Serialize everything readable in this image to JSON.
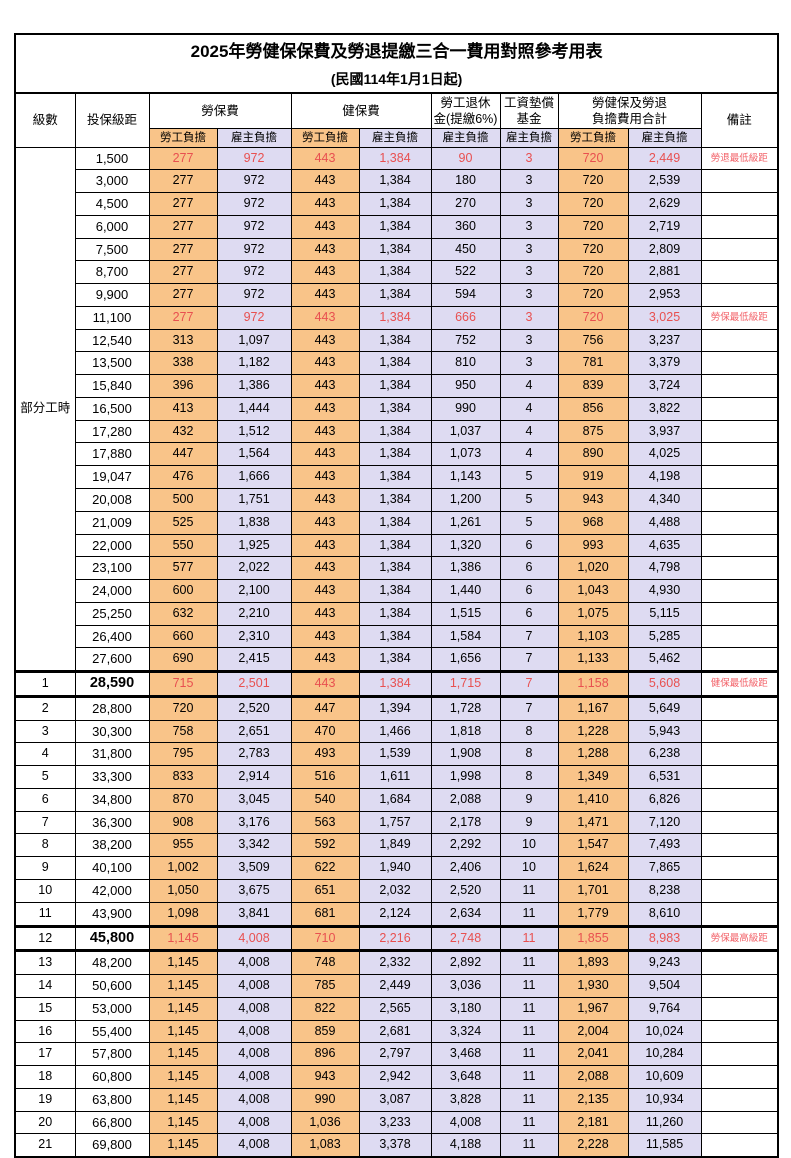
{
  "title": "2025年勞健保保費及勞退提繳三合一費用對照參考用表",
  "subtitle": "(民國114年1月1日起)",
  "columns": {
    "level": "級數",
    "bracket": "投保級距",
    "labor": "勞保費",
    "health": "健保費",
    "pension_l1": "勞工退休",
    "pension_l2": "金(提繳6%)",
    "fund_l1": "工資墊償",
    "fund_l2": "基金",
    "total_l1": "勞健保及勞退",
    "total_l2": "負擔費用合計",
    "remark": "備註",
    "employee_share": "勞工負擔",
    "employer_share": "雇主負擔"
  },
  "part_time_label": "部分工時",
  "colors": {
    "employee_bg": "#F9C489",
    "employer_bg": "#DEDBF2",
    "highlight_text": "#E85050",
    "note_text": "#F25F66",
    "border": "#000000"
  },
  "rows": [
    {
      "level": "部分工時",
      "level_span": 23,
      "bracket": "1,500",
      "values": [
        "277",
        "972",
        "443",
        "1,384",
        "90",
        "3",
        "720",
        "2,449"
      ],
      "note": "勞退最低級距",
      "red": true
    },
    {
      "bracket": "3,000",
      "values": [
        "277",
        "972",
        "443",
        "1,384",
        "180",
        "3",
        "720",
        "2,539"
      ]
    },
    {
      "bracket": "4,500",
      "values": [
        "277",
        "972",
        "443",
        "1,384",
        "270",
        "3",
        "720",
        "2,629"
      ]
    },
    {
      "bracket": "6,000",
      "values": [
        "277",
        "972",
        "443",
        "1,384",
        "360",
        "3",
        "720",
        "2,719"
      ]
    },
    {
      "bracket": "7,500",
      "values": [
        "277",
        "972",
        "443",
        "1,384",
        "450",
        "3",
        "720",
        "2,809"
      ]
    },
    {
      "bracket": "8,700",
      "values": [
        "277",
        "972",
        "443",
        "1,384",
        "522",
        "3",
        "720",
        "2,881"
      ]
    },
    {
      "bracket": "9,900",
      "values": [
        "277",
        "972",
        "443",
        "1,384",
        "594",
        "3",
        "720",
        "2,953"
      ]
    },
    {
      "bracket": "11,100",
      "values": [
        "277",
        "972",
        "443",
        "1,384",
        "666",
        "3",
        "720",
        "3,025"
      ],
      "note": "勞保最低級距",
      "red": true
    },
    {
      "bracket": "12,540",
      "values": [
        "313",
        "1,097",
        "443",
        "1,384",
        "752",
        "3",
        "756",
        "3,237"
      ]
    },
    {
      "bracket": "13,500",
      "values": [
        "338",
        "1,182",
        "443",
        "1,384",
        "810",
        "3",
        "781",
        "3,379"
      ]
    },
    {
      "bracket": "15,840",
      "values": [
        "396",
        "1,386",
        "443",
        "1,384",
        "950",
        "4",
        "839",
        "3,724"
      ]
    },
    {
      "bracket": "16,500",
      "values": [
        "413",
        "1,444",
        "443",
        "1,384",
        "990",
        "4",
        "856",
        "3,822"
      ]
    },
    {
      "bracket": "17,280",
      "values": [
        "432",
        "1,512",
        "443",
        "1,384",
        "1,037",
        "4",
        "875",
        "3,937"
      ]
    },
    {
      "bracket": "17,880",
      "values": [
        "447",
        "1,564",
        "443",
        "1,384",
        "1,073",
        "4",
        "890",
        "4,025"
      ]
    },
    {
      "bracket": "19,047",
      "values": [
        "476",
        "1,666",
        "443",
        "1,384",
        "1,143",
        "5",
        "919",
        "4,198"
      ]
    },
    {
      "bracket": "20,008",
      "values": [
        "500",
        "1,751",
        "443",
        "1,384",
        "1,200",
        "5",
        "943",
        "4,340"
      ]
    },
    {
      "bracket": "21,009",
      "values": [
        "525",
        "1,838",
        "443",
        "1,384",
        "1,261",
        "5",
        "968",
        "4,488"
      ]
    },
    {
      "bracket": "22,000",
      "values": [
        "550",
        "1,925",
        "443",
        "1,384",
        "1,320",
        "6",
        "993",
        "4,635"
      ]
    },
    {
      "bracket": "23,100",
      "values": [
        "577",
        "2,022",
        "443",
        "1,384",
        "1,386",
        "6",
        "1,020",
        "4,798"
      ]
    },
    {
      "bracket": "24,000",
      "values": [
        "600",
        "2,100",
        "443",
        "1,384",
        "1,440",
        "6",
        "1,043",
        "4,930"
      ]
    },
    {
      "bracket": "25,250",
      "values": [
        "632",
        "2,210",
        "443",
        "1,384",
        "1,515",
        "6",
        "1,075",
        "5,115"
      ]
    },
    {
      "bracket": "26,400",
      "values": [
        "660",
        "2,310",
        "443",
        "1,384",
        "1,584",
        "7",
        "1,103",
        "5,285"
      ]
    },
    {
      "bracket": "27,600",
      "values": [
        "690",
        "2,415",
        "443",
        "1,384",
        "1,656",
        "7",
        "1,133",
        "5,462"
      ]
    },
    {
      "level": "1",
      "bracket": "28,590",
      "values": [
        "715",
        "2,501",
        "443",
        "1,384",
        "1,715",
        "7",
        "1,158",
        "5,608"
      ],
      "note": "健保最低級距",
      "red": true,
      "key": true
    },
    {
      "level": "2",
      "bracket": "28,800",
      "values": [
        "720",
        "2,520",
        "447",
        "1,394",
        "1,728",
        "7",
        "1,167",
        "5,649"
      ]
    },
    {
      "level": "3",
      "bracket": "30,300",
      "values": [
        "758",
        "2,651",
        "470",
        "1,466",
        "1,818",
        "8",
        "1,228",
        "5,943"
      ]
    },
    {
      "level": "4",
      "bracket": "31,800",
      "values": [
        "795",
        "2,783",
        "493",
        "1,539",
        "1,908",
        "8",
        "1,288",
        "6,238"
      ]
    },
    {
      "level": "5",
      "bracket": "33,300",
      "values": [
        "833",
        "2,914",
        "516",
        "1,611",
        "1,998",
        "8",
        "1,349",
        "6,531"
      ]
    },
    {
      "level": "6",
      "bracket": "34,800",
      "values": [
        "870",
        "3,045",
        "540",
        "1,684",
        "2,088",
        "9",
        "1,410",
        "6,826"
      ]
    },
    {
      "level": "7",
      "bracket": "36,300",
      "values": [
        "908",
        "3,176",
        "563",
        "1,757",
        "2,178",
        "9",
        "1,471",
        "7,120"
      ]
    },
    {
      "level": "8",
      "bracket": "38,200",
      "values": [
        "955",
        "3,342",
        "592",
        "1,849",
        "2,292",
        "10",
        "1,547",
        "7,493"
      ]
    },
    {
      "level": "9",
      "bracket": "40,100",
      "values": [
        "1,002",
        "3,509",
        "622",
        "1,940",
        "2,406",
        "10",
        "1,624",
        "7,865"
      ]
    },
    {
      "level": "10",
      "bracket": "42,000",
      "values": [
        "1,050",
        "3,675",
        "651",
        "2,032",
        "2,520",
        "11",
        "1,701",
        "8,238"
      ]
    },
    {
      "level": "11",
      "bracket": "43,900",
      "values": [
        "1,098",
        "3,841",
        "681",
        "2,124",
        "2,634",
        "11",
        "1,779",
        "8,610"
      ]
    },
    {
      "level": "12",
      "bracket": "45,800",
      "values": [
        "1,145",
        "4,008",
        "710",
        "2,216",
        "2,748",
        "11",
        "1,855",
        "8,983"
      ],
      "note": "勞保最高級距",
      "red": true,
      "key": true
    },
    {
      "level": "13",
      "bracket": "48,200",
      "values": [
        "1,145",
        "4,008",
        "748",
        "2,332",
        "2,892",
        "11",
        "1,893",
        "9,243"
      ]
    },
    {
      "level": "14",
      "bracket": "50,600",
      "values": [
        "1,145",
        "4,008",
        "785",
        "2,449",
        "3,036",
        "11",
        "1,930",
        "9,504"
      ]
    },
    {
      "level": "15",
      "bracket": "53,000",
      "values": [
        "1,145",
        "4,008",
        "822",
        "2,565",
        "3,180",
        "11",
        "1,967",
        "9,764"
      ]
    },
    {
      "level": "16",
      "bracket": "55,400",
      "values": [
        "1,145",
        "4,008",
        "859",
        "2,681",
        "3,324",
        "11",
        "2,004",
        "10,024"
      ]
    },
    {
      "level": "17",
      "bracket": "57,800",
      "values": [
        "1,145",
        "4,008",
        "896",
        "2,797",
        "3,468",
        "11",
        "2,041",
        "10,284"
      ]
    },
    {
      "level": "18",
      "bracket": "60,800",
      "values": [
        "1,145",
        "4,008",
        "943",
        "2,942",
        "3,648",
        "11",
        "2,088",
        "10,609"
      ]
    },
    {
      "level": "19",
      "bracket": "63,800",
      "values": [
        "1,145",
        "4,008",
        "990",
        "3,087",
        "3,828",
        "11",
        "2,135",
        "10,934"
      ]
    },
    {
      "level": "20",
      "bracket": "66,800",
      "values": [
        "1,145",
        "4,008",
        "1,036",
        "3,233",
        "4,008",
        "11",
        "2,181",
        "11,260"
      ]
    },
    {
      "level": "21",
      "bracket": "69,800",
      "values": [
        "1,145",
        "4,008",
        "1,083",
        "3,378",
        "4,188",
        "11",
        "2,228",
        "11,585"
      ]
    }
  ]
}
